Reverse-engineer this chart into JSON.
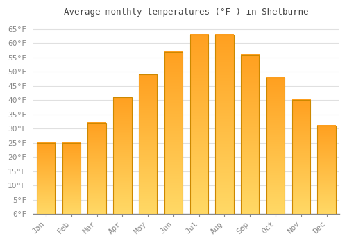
{
  "title": "Average monthly temperatures (°F ) in Shelburne",
  "months": [
    "Jan",
    "Feb",
    "Mar",
    "Apr",
    "May",
    "Jun",
    "Jul",
    "Aug",
    "Sep",
    "Oct",
    "Nov",
    "Dec"
  ],
  "values": [
    25,
    25,
    32,
    41,
    49,
    57,
    63,
    63,
    56,
    48,
    40,
    31
  ],
  "bar_color_main": "#FFA500",
  "bar_color_light": "#FFD966",
  "bar_edge_color": "#CC8800",
  "background_color": "#FFFFFF",
  "grid_color": "#E0E0E0",
  "title_fontsize": 9,
  "tick_fontsize": 8,
  "ylim": [
    0,
    68
  ],
  "yticks": [
    0,
    5,
    10,
    15,
    20,
    25,
    30,
    35,
    40,
    45,
    50,
    55,
    60,
    65
  ],
  "ytick_labels": [
    "0°F",
    "5°F",
    "10°F",
    "15°F",
    "20°F",
    "25°F",
    "30°F",
    "35°F",
    "40°F",
    "45°F",
    "50°F",
    "55°F",
    "60°F",
    "65°F"
  ]
}
